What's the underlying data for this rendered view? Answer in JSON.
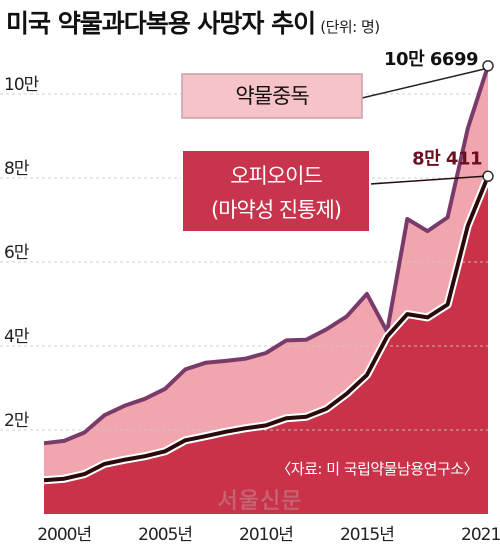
{
  "title": "미국 약물과다복용 사망자 추이",
  "unit": "(단위: 명)",
  "source": "〈자료: 미 국립약물남용연구소〉",
  "watermark": "서울신문",
  "colors": {
    "area_total": "#f1a5ae",
    "area_opioid": "#c93249",
    "line_total": "#7a3a6a",
    "line_opioid": "#2a0a0a",
    "grid": "#c8c8c8"
  },
  "chart_data": {
    "type": "area",
    "x": [
      1999,
      2000,
      2001,
      2002,
      2003,
      2004,
      2005,
      2006,
      2007,
      2008,
      2009,
      2010,
      2011,
      2012,
      2013,
      2014,
      2015,
      2016,
      2017,
      2018,
      2019,
      2020,
      2021
    ],
    "series": [
      {
        "name": "약물중독",
        "values": [
          16849,
          17415,
          19394,
          23518,
          25785,
          27424,
          29813,
          34425,
          36010,
          36450,
          37004,
          38329,
          41340,
          41502,
          43982,
          47055,
          52404,
          43400,
          70237,
          67367,
          70630,
          91799,
          106699
        ]
      },
      {
        "name": "오피오이드 (마약성 진통제)",
        "values": [
          8050,
          8407,
          9496,
          11920,
          12940,
          13756,
          14918,
          17545,
          18516,
          19582,
          20422,
          21089,
          22784,
          23166,
          25052,
          28647,
          33091,
          42249,
          47600,
          46802,
          49860,
          68630,
          80411
        ]
      }
    ],
    "annotations": [
      {
        "text": "10만 6699",
        "x": 2021,
        "y": 106699
      },
      {
        "text": "8만 411",
        "x": 2021,
        "y": 80411
      }
    ],
    "ytick_labels": [
      "2만",
      "4만",
      "6만",
      "8만",
      "10만"
    ],
    "ytick_values": [
      20000,
      40000,
      60000,
      80000,
      100000
    ],
    "xtick_labels": [
      "2000년",
      "2005년",
      "2010년",
      "2015년",
      "2021년"
    ],
    "xtick_values": [
      2000,
      2005,
      2010,
      2015,
      2021
    ],
    "callouts": [
      {
        "lines": [
          "약물중독"
        ],
        "series": 0
      },
      {
        "lines": [
          "오피오이드",
          "(마약성 진통제)"
        ],
        "series": 1
      }
    ],
    "grid": true,
    "ylim": [
      0,
      110000
    ]
  }
}
